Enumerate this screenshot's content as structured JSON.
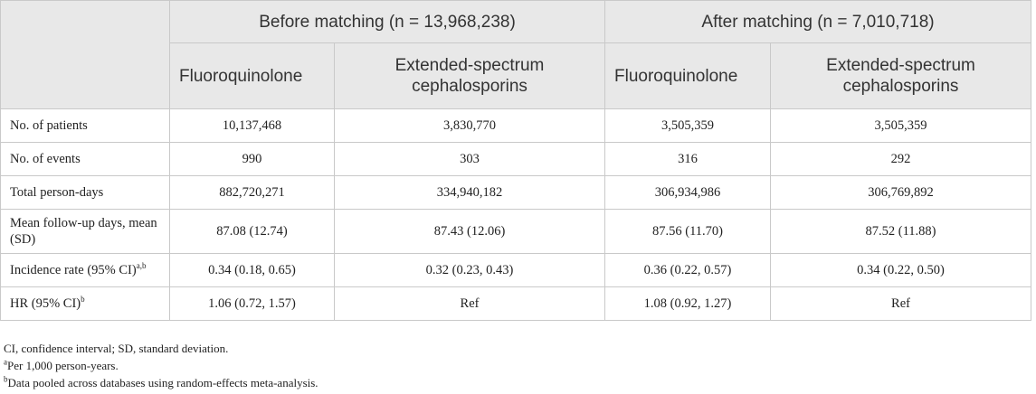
{
  "header": {
    "before": "Before matching (n = 13,968,238)",
    "after": "After matching (n = 7,010,718)",
    "fluoroquinolone": "Fluoroquinolone",
    "esc": "Extended-spectrum cephalosporins"
  },
  "rows": [
    {
      "label": "No. of patients",
      "sup": "",
      "values": [
        "10,137,468",
        "3,830,770",
        "3,505,359",
        "3,505,359"
      ]
    },
    {
      "label": "No. of events",
      "sup": "",
      "values": [
        "990",
        "303",
        "316",
        "292"
      ]
    },
    {
      "label": "Total person-days",
      "sup": "",
      "values": [
        "882,720,271",
        "334,940,182",
        "306,934,986",
        "306,769,892"
      ]
    },
    {
      "label": "Mean follow-up days, mean (SD)",
      "sup": "",
      "values": [
        "87.08 (12.74)",
        "87.43 (12.06)",
        "87.56 (11.70)",
        "87.52 (11.88)"
      ]
    },
    {
      "label": "Incidence rate (95% CI)",
      "sup": "a,b",
      "values": [
        "0.34 (0.18, 0.65)",
        "0.32 (0.23, 0.43)",
        "0.36 (0.22, 0.57)",
        "0.34 (0.22, 0.50)"
      ]
    },
    {
      "label": "HR (95% CI)",
      "sup": "b",
      "values": [
        "1.06 (0.72, 1.57)",
        "Ref",
        "1.08 (0.92, 1.27)",
        "Ref"
      ]
    }
  ],
  "footnotes": {
    "abbrev": "CI, confidence interval; SD, standard deviation.",
    "a_mark": "a",
    "a_text": "Per 1,000 person-years.",
    "b_mark": "b",
    "b_text": "Data pooled across databases using random-effects meta-analysis."
  }
}
